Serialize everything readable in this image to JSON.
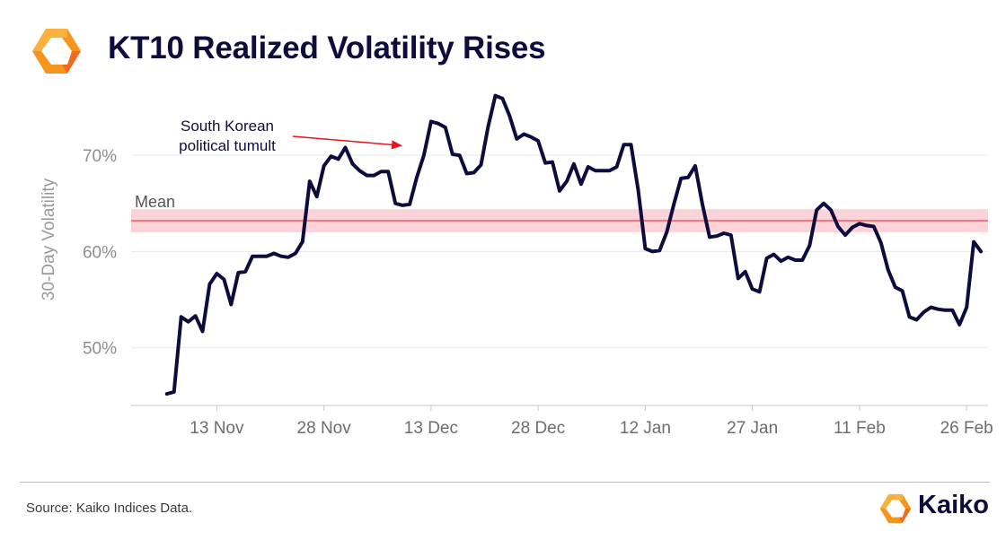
{
  "header": {
    "title": "KT10 Realized Volatility Rises"
  },
  "footer": {
    "source": "Source: Kaiko Indices Data.",
    "brand": "Kaiko"
  },
  "colors": {
    "line": "#0d0c3d",
    "mean_line": "#ef5a64",
    "mean_band": "#fbd3d8",
    "logo_orange": "#f7941d",
    "logo_yellow": "#fbb03b",
    "annotation_arrow": "#e8141f"
  },
  "icons": {
    "logo": "kaiko-logo-icon",
    "brand": "kaiko-logo-icon"
  },
  "chart_data": {
    "type": "line",
    "title": "KT10 Realized Volatility Rises",
    "xlabel": "",
    "ylabel": "30-Day Volatility",
    "ylim": [
      44,
      77
    ],
    "xlim": [
      "2024-11-01",
      "2025-03-01"
    ],
    "x_ticks": [
      "2024-11-13",
      "2024-11-28",
      "2024-12-13",
      "2024-12-28",
      "2025-01-12",
      "2025-01-27",
      "2025-02-11",
      "2025-02-26"
    ],
    "x_tick_labels": [
      "13 Nov",
      "28 Nov",
      "13 Dec",
      "28 Dec",
      "12 Jan",
      "27 Jan",
      "11 Feb",
      "26 Feb"
    ],
    "y_ticks": [
      50,
      60,
      70
    ],
    "y_tick_labels": [
      "50%",
      "60%",
      "70%"
    ],
    "grid": "horizontal",
    "mean": {
      "label": "Mean",
      "value": 63.2,
      "band": [
        62.0,
        64.4
      ]
    },
    "annotation": {
      "lines": [
        "South Korean",
        "political tumult"
      ],
      "target": {
        "x": "2024-12-09",
        "y": 71.0
      }
    },
    "series": [
      {
        "name": "",
        "points": [
          [
            "2024-11-06",
            45.2
          ],
          [
            "2024-11-07",
            45.4
          ],
          [
            "2024-11-08",
            53.2
          ],
          [
            "2024-11-09",
            52.7
          ],
          [
            "2024-11-10",
            53.3
          ],
          [
            "2024-11-11",
            51.7
          ],
          [
            "2024-11-12",
            56.6
          ],
          [
            "2024-11-13",
            57.7
          ],
          [
            "2024-11-14",
            57.1
          ],
          [
            "2024-11-15",
            54.5
          ],
          [
            "2024-11-16",
            57.8
          ],
          [
            "2024-11-17",
            57.9
          ],
          [
            "2024-11-18",
            59.5
          ],
          [
            "2024-11-19",
            59.5
          ],
          [
            "2024-11-20",
            59.5
          ],
          [
            "2024-11-21",
            59.8
          ],
          [
            "2024-11-22",
            59.5
          ],
          [
            "2024-11-23",
            59.4
          ],
          [
            "2024-11-24",
            59.8
          ],
          [
            "2024-11-25",
            61.0
          ],
          [
            "2024-11-26",
            67.3
          ],
          [
            "2024-11-27",
            65.7
          ],
          [
            "2024-11-28",
            68.9
          ],
          [
            "2024-11-29",
            69.9
          ],
          [
            "2024-11-30",
            69.6
          ],
          [
            "2024-12-01",
            70.8
          ],
          [
            "2024-12-02",
            69.1
          ],
          [
            "2024-12-03",
            68.4
          ],
          [
            "2024-12-04",
            67.9
          ],
          [
            "2024-12-05",
            67.9
          ],
          [
            "2024-12-06",
            68.3
          ],
          [
            "2024-12-07",
            68.3
          ],
          [
            "2024-12-08",
            65.0
          ],
          [
            "2024-12-09",
            64.8
          ],
          [
            "2024-12-10",
            64.9
          ],
          [
            "2024-12-11",
            67.7
          ],
          [
            "2024-12-12",
            70.0
          ],
          [
            "2024-12-13",
            73.5
          ],
          [
            "2024-12-14",
            73.3
          ],
          [
            "2024-12-15",
            72.9
          ],
          [
            "2024-12-16",
            70.1
          ],
          [
            "2024-12-17",
            70.0
          ],
          [
            "2024-12-18",
            68.1
          ],
          [
            "2024-12-19",
            68.2
          ],
          [
            "2024-12-20",
            69.0
          ],
          [
            "2024-12-21",
            73.0
          ],
          [
            "2024-12-22",
            76.2
          ],
          [
            "2024-12-23",
            75.9
          ],
          [
            "2024-12-24",
            74.1
          ],
          [
            "2024-12-25",
            71.7
          ],
          [
            "2024-12-26",
            72.2
          ],
          [
            "2024-12-27",
            71.9
          ],
          [
            "2024-12-28",
            71.5
          ],
          [
            "2024-12-29",
            69.2
          ],
          [
            "2024-12-30",
            69.3
          ],
          [
            "2024-12-31",
            66.3
          ],
          [
            "2025-01-01",
            67.3
          ],
          [
            "2025-01-02",
            69.1
          ],
          [
            "2025-01-03",
            67.0
          ],
          [
            "2025-01-04",
            68.8
          ],
          [
            "2025-01-05",
            68.4
          ],
          [
            "2025-01-06",
            68.4
          ],
          [
            "2025-01-07",
            68.4
          ],
          [
            "2025-01-08",
            68.8
          ],
          [
            "2025-01-09",
            71.1
          ],
          [
            "2025-01-10",
            71.1
          ],
          [
            "2025-01-11",
            66.4
          ],
          [
            "2025-01-12",
            60.3
          ],
          [
            "2025-01-13",
            60.0
          ],
          [
            "2025-01-14",
            60.1
          ],
          [
            "2025-01-15",
            62.0
          ],
          [
            "2025-01-16",
            64.9
          ],
          [
            "2025-01-17",
            67.6
          ],
          [
            "2025-01-18",
            67.7
          ],
          [
            "2025-01-19",
            68.9
          ],
          [
            "2025-01-20",
            64.9
          ],
          [
            "2025-01-21",
            61.5
          ],
          [
            "2025-01-22",
            61.6
          ],
          [
            "2025-01-23",
            61.9
          ],
          [
            "2025-01-24",
            61.7
          ],
          [
            "2025-01-25",
            57.2
          ],
          [
            "2025-01-26",
            57.9
          ],
          [
            "2025-01-27",
            56.1
          ],
          [
            "2025-01-28",
            55.8
          ],
          [
            "2025-01-29",
            59.3
          ],
          [
            "2025-01-30",
            59.7
          ],
          [
            "2025-01-31",
            59.0
          ],
          [
            "2025-02-01",
            59.4
          ],
          [
            "2025-02-02",
            59.1
          ],
          [
            "2025-02-03",
            59.1
          ],
          [
            "2025-02-04",
            60.6
          ],
          [
            "2025-02-05",
            64.3
          ],
          [
            "2025-02-06",
            65.0
          ],
          [
            "2025-02-07",
            64.3
          ],
          [
            "2025-02-08",
            62.6
          ],
          [
            "2025-02-09",
            61.7
          ],
          [
            "2025-02-10",
            62.5
          ],
          [
            "2025-02-11",
            62.9
          ],
          [
            "2025-02-12",
            62.7
          ],
          [
            "2025-02-13",
            62.6
          ],
          [
            "2025-02-14",
            60.9
          ],
          [
            "2025-02-15",
            58.1
          ],
          [
            "2025-02-16",
            56.3
          ],
          [
            "2025-02-17",
            55.9
          ],
          [
            "2025-02-18",
            53.2
          ],
          [
            "2025-02-19",
            52.9
          ],
          [
            "2025-02-20",
            53.7
          ],
          [
            "2025-02-21",
            54.2
          ],
          [
            "2025-02-22",
            54.0
          ],
          [
            "2025-02-23",
            53.9
          ],
          [
            "2025-02-24",
            53.9
          ],
          [
            "2025-02-25",
            52.4
          ],
          [
            "2025-02-26",
            54.2
          ],
          [
            "2025-02-27",
            61.0
          ],
          [
            "2025-02-28",
            60.0
          ]
        ]
      }
    ]
  }
}
